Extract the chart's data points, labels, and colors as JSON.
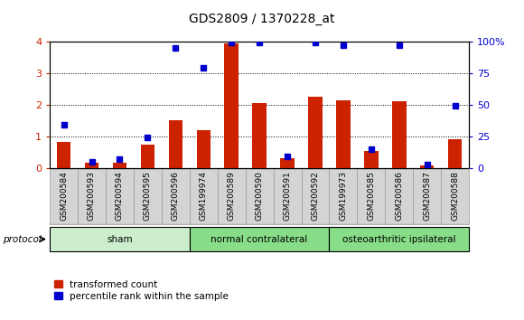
{
  "title": "GDS2809 / 1370228_at",
  "samples": [
    "GSM200584",
    "GSM200593",
    "GSM200594",
    "GSM200595",
    "GSM200596",
    "GSM199974",
    "GSM200589",
    "GSM200590",
    "GSM200591",
    "GSM200592",
    "GSM199973",
    "GSM200585",
    "GSM200586",
    "GSM200587",
    "GSM200588"
  ],
  "red_values": [
    0.82,
    0.18,
    0.18,
    0.75,
    1.5,
    1.2,
    3.95,
    2.05,
    0.3,
    2.25,
    2.15,
    0.55,
    2.1,
    0.08,
    0.92
  ],
  "blue_pct": [
    34,
    5,
    7,
    24,
    95,
    79,
    99,
    99,
    9,
    99,
    97,
    15,
    97,
    3,
    49
  ],
  "ylim_left": [
    0,
    4
  ],
  "ylim_right": [
    0,
    100
  ],
  "yticks_left": [
    0,
    1,
    2,
    3,
    4
  ],
  "yticks_right": [
    0,
    25,
    50,
    75,
    100
  ],
  "ytick_labels_right": [
    "0",
    "25",
    "50",
    "75",
    "100%"
  ],
  "red_color": "#cc2200",
  "blue_color": "#0000cc",
  "bar_width": 0.5,
  "legend_red": "transformed count",
  "legend_blue": "percentile rank within the sample",
  "plot_bg": "#ffffff",
  "tick_box_color": "#d4d4d4",
  "tick_box_edge": "#999999",
  "group_sham_color": "#cceecc",
  "group_normal_color": "#88dd88",
  "group_osteo_color": "#88dd88",
  "groups": [
    {
      "label": "sham",
      "start": 0,
      "end": 5
    },
    {
      "label": "normal contralateral",
      "start": 5,
      "end": 10
    },
    {
      "label": "osteoarthritic ipsilateral",
      "start": 10,
      "end": 15
    }
  ]
}
